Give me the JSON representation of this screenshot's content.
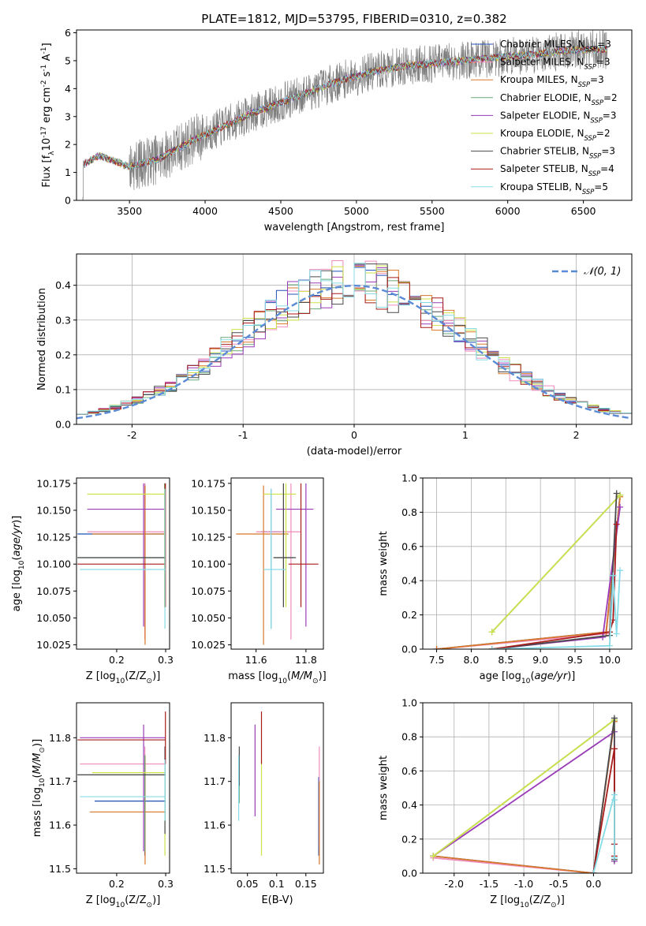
{
  "figure_title": "PLATE=1812, MJD=53795, FIBERID=0310, z=0.382",
  "models": [
    {
      "label": "Chabrier MILES, N$_{SSP}$=3",
      "base": "Chabrier MILES, N",
      "sub": "SSP",
      "suffix": "=3",
      "color": "#1f4fb4"
    },
    {
      "label": "Salpeter MILES, N$_{SSP}$=3",
      "base": "Salpeter MILES, N",
      "sub": "SSP",
      "suffix": "=3",
      "color": "#f08cbc"
    },
    {
      "label": "Kroupa MILES, N$_{SSP}$=3",
      "base": "Kroupa MILES, N",
      "sub": "SSP",
      "suffix": "=3",
      "color": "#d8782a"
    },
    {
      "label": "Chabrier ELODIE, N$_{SSP}$=2",
      "base": "Chabrier ELODIE, N",
      "sub": "SSP",
      "suffix": "=2",
      "color": "#6aa87a"
    },
    {
      "label": "Salpeter ELODIE, N$_{SSP}$=3",
      "base": "Salpeter ELODIE, N",
      "sub": "SSP",
      "suffix": "=3",
      "color": "#9a3cb8"
    },
    {
      "label": "Kroupa ELODIE, N$_{SSP}$=2",
      "base": "Kroupa ELODIE, N",
      "sub": "SSP",
      "suffix": "=2",
      "color": "#cde24a"
    },
    {
      "label": "Chabrier STELIB, N$_{SSP}$=3",
      "base": "Chabrier STELIB, N",
      "sub": "SSP",
      "suffix": "=3",
      "color": "#4a4a4a"
    },
    {
      "label": "Salpeter STELIB, N$_{SSP}$=4",
      "base": "Salpeter STELIB, N",
      "sub": "SSP",
      "suffix": "=4",
      "color": "#a81c1c"
    },
    {
      "label": "Kroupa STELIB, N$_{SSP}$=5",
      "base": "Kroupa STELIB, N",
      "sub": "SSP",
      "suffix": "=5",
      "color": "#86dce6"
    }
  ],
  "chart_data": [
    {
      "id": "spectrum",
      "type": "line",
      "xlabel": "wavelength [Angstrom, rest frame]",
      "ylabel": "Flux [f$_\\lambda$10$^{-17}$ erg cm$^{-2}$ s$^{-1}$ A$^{-1}$]",
      "xlim": [
        3150,
        6820
      ],
      "ylim": [
        0,
        6.1
      ],
      "xticks": [
        3500,
        4000,
        4500,
        5000,
        5500,
        6000,
        6500
      ],
      "yticks": [
        0,
        1,
        2,
        3,
        4,
        5,
        6
      ],
      "grid": false,
      "legend": "right",
      "observed": {
        "color": "#808080",
        "wavelength_range": [
          3190,
          6660
        ]
      },
      "model_continuum": {
        "x": [
          3200,
          3300,
          3500,
          3700,
          3900,
          4100,
          4300,
          4500,
          4700,
          4900,
          5100,
          5300,
          5500,
          5700,
          5900,
          6100,
          6300,
          6500,
          6660
        ],
        "y": [
          1.3,
          1.6,
          1.2,
          1.5,
          2.1,
          2.6,
          3.1,
          3.5,
          3.9,
          4.3,
          4.6,
          4.8,
          4.9,
          5.0,
          5.1,
          5.2,
          5.3,
          5.4,
          5.4
        ]
      }
    },
    {
      "id": "residuals",
      "type": "step",
      "xlabel": "(data-model)/error",
      "ylabel": "Normed distribution",
      "xlim": [
        -2.5,
        2.5
      ],
      "ylim": [
        0,
        0.49
      ],
      "xticks": [
        -2,
        -1,
        0,
        1,
        2
      ],
      "yticks": [
        0.0,
        0.1,
        0.2,
        0.3,
        0.4
      ],
      "grid": true,
      "legend": "top-right",
      "gaussian_label": "$\\mathcal{N}(0,1)$",
      "gaussian_text": "𝒩(0, 1)",
      "gaussian_color": "#5b8bd6",
      "bin_width": 0.1
    },
    {
      "id": "age_vs_Z",
      "type": "errorbar",
      "xlabel": "Z [log$_{10}$(Z/Z$_\\odot$)]",
      "ylabel": "age  [log$_{10}$($age/yr$)]",
      "xlim": [
        0.118,
        0.308
      ],
      "ylim": [
        10.021,
        10.18
      ],
      "xticks": [
        0.2,
        0.3
      ],
      "yticks": [
        10.025,
        10.05,
        10.075,
        10.1,
        10.125,
        10.15,
        10.175
      ],
      "points": [
        {
          "model": 0,
          "x": 0.2575,
          "y": 10.128,
          "xerr": [
            0.12,
            0.3
          ],
          "yerr": [
            10.04,
            10.175
          ]
        },
        {
          "model": 1,
          "x": 0.2575,
          "y": 10.13,
          "xerr": [
            0.14,
            0.3
          ],
          "yerr": [
            10.03,
            10.175
          ]
        },
        {
          "model": 2,
          "x": 0.258,
          "y": 10.128,
          "xerr": [
            0.15,
            0.3
          ],
          "yerr": [
            10.025,
            10.173
          ]
        },
        {
          "model": 3,
          "x": 0.298,
          "y": 10.106,
          "xerr": [
            0.12,
            0.3
          ],
          "yerr": [
            10.06,
            10.175
          ]
        },
        {
          "model": 4,
          "x": 0.255,
          "y": 10.151,
          "xerr": [
            0.14,
            0.3
          ],
          "yerr": [
            10.042,
            10.175
          ]
        },
        {
          "model": 5,
          "x": 0.298,
          "y": 10.165,
          "xerr": [
            0.14,
            0.3
          ],
          "yerr": [
            10.06,
            10.175
          ]
        },
        {
          "model": 6,
          "x": 0.2985,
          "y": 10.106,
          "xerr": [
            0.12,
            0.3
          ],
          "yerr": [
            10.06,
            10.175
          ]
        },
        {
          "model": 7,
          "x": 0.2995,
          "y": 10.1,
          "xerr": [
            0.12,
            0.3
          ],
          "yerr": [
            10.06,
            10.175
          ]
        },
        {
          "model": 8,
          "x": 0.2985,
          "y": 10.095,
          "xerr": [
            0.125,
            0.3
          ],
          "yerr": [
            10.04,
            10.17
          ]
        }
      ]
    },
    {
      "id": "age_vs_mass",
      "type": "errorbar",
      "xlabel": "mass [log$_{10}$($M/M_\\odot$)]",
      "ylabel": "",
      "xlim": [
        11.5,
        11.87
      ],
      "ylim": [
        10.021,
        10.18
      ],
      "xticks": [
        11.6,
        11.8
      ],
      "yticks": [
        10.025,
        10.05,
        10.075,
        10.1,
        10.125,
        10.15,
        10.175
      ],
      "points": [
        {
          "model": 0,
          "x": 11.66,
          "y": 10.13,
          "xerr": [
            11.62,
            11.7
          ],
          "yerr": [
            10.04,
            10.17
          ]
        },
        {
          "model": 1,
          "x": 11.74,
          "y": 10.13,
          "xerr": [
            11.6,
            11.78
          ],
          "yerr": [
            10.03,
            10.175
          ]
        },
        {
          "model": 2,
          "x": 11.63,
          "y": 10.128,
          "xerr": [
            11.52,
            11.73
          ],
          "yerr": [
            10.025,
            10.173
          ]
        },
        {
          "model": 3,
          "x": 11.71,
          "y": 10.106,
          "xerr": [
            11.67,
            11.75
          ],
          "yerr": [
            10.06,
            10.175
          ]
        },
        {
          "model": 4,
          "x": 11.8,
          "y": 10.151,
          "xerr": [
            11.68,
            11.83
          ],
          "yerr": [
            10.042,
            10.175
          ]
        },
        {
          "model": 5,
          "x": 11.72,
          "y": 10.165,
          "xerr": [
            11.63,
            11.76
          ],
          "yerr": [
            10.06,
            10.175
          ]
        },
        {
          "model": 6,
          "x": 11.71,
          "y": 10.106,
          "xerr": [
            11.67,
            11.76
          ],
          "yerr": [
            10.06,
            10.175
          ]
        },
        {
          "model": 7,
          "x": 11.78,
          "y": 10.1,
          "xerr": [
            11.73,
            11.85
          ],
          "yerr": [
            10.06,
            10.175
          ]
        },
        {
          "model": 8,
          "x": 11.66,
          "y": 10.095,
          "xerr": [
            11.63,
            11.72
          ],
          "yerr": [
            10.04,
            10.17
          ]
        }
      ]
    },
    {
      "id": "mass_vs_Z",
      "type": "errorbar",
      "xlabel": "Z [log$_{10}$(Z/Z$_\\odot$)]",
      "ylabel": "mass [log$_{10}$($M/M_\\odot$)]",
      "xlim": [
        0.118,
        0.308
      ],
      "ylim": [
        11.49,
        11.88
      ],
      "xticks": [
        0.2,
        0.3
      ],
      "yticks": [
        11.5,
        11.6,
        11.7,
        11.8
      ],
      "points": [
        {
          "model": 0,
          "x": 0.2575,
          "y": 11.655,
          "xerr": [
            0.155,
            0.3
          ],
          "yerr": [
            11.53,
            11.76
          ]
        },
        {
          "model": 1,
          "x": 0.2575,
          "y": 11.74,
          "xerr": [
            0.125,
            0.3
          ],
          "yerr": [
            11.54,
            11.78
          ]
        },
        {
          "model": 2,
          "x": 0.258,
          "y": 11.63,
          "xerr": [
            0.145,
            0.3
          ],
          "yerr": [
            11.51,
            11.76
          ]
        },
        {
          "model": 3,
          "x": 0.2575,
          "y": 11.715,
          "xerr": [
            0.12,
            0.3
          ],
          "yerr": [
            11.54,
            11.76
          ]
        },
        {
          "model": 4,
          "x": 0.255,
          "y": 11.8,
          "xerr": [
            0.125,
            0.3
          ],
          "yerr": [
            11.54,
            11.83
          ]
        },
        {
          "model": 5,
          "x": 0.2985,
          "y": 11.72,
          "xerr": [
            0.15,
            0.3
          ],
          "yerr": [
            11.53,
            11.76
          ]
        },
        {
          "model": 6,
          "x": 0.2985,
          "y": 11.715,
          "xerr": [
            0.12,
            0.3
          ],
          "yerr": [
            11.58,
            11.78
          ]
        },
        {
          "model": 7,
          "x": 0.2995,
          "y": 11.795,
          "xerr": [
            0.12,
            0.3
          ],
          "yerr": [
            11.74,
            11.86
          ]
        },
        {
          "model": 8,
          "x": 0.2985,
          "y": 11.665,
          "xerr": [
            0.125,
            0.3
          ],
          "yerr": [
            11.61,
            11.75
          ]
        }
      ]
    },
    {
      "id": "mass_vs_ebv",
      "type": "errorbar",
      "xlabel": "E(B-V)",
      "ylabel": "",
      "xlim": [
        0.022,
        0.18
      ],
      "ylim": [
        11.49,
        11.88
      ],
      "xticks": [
        0.05,
        0.1,
        0.15
      ],
      "yticks": [
        11.5,
        11.6,
        11.7,
        11.8
      ],
      "points": [
        {
          "model": 0,
          "x": 0.172,
          "y": 11.655,
          "yerr": [
            11.53,
            11.71
          ]
        },
        {
          "model": 1,
          "x": 0.173,
          "y": 11.74,
          "yerr": [
            11.55,
            11.78
          ]
        },
        {
          "model": 2,
          "x": 0.173,
          "y": 11.63,
          "yerr": [
            11.51,
            11.7
          ]
        },
        {
          "model": 3,
          "x": 0.036,
          "y": 11.715,
          "yerr": [
            11.65,
            11.76
          ]
        },
        {
          "model": 4,
          "x": 0.063,
          "y": 11.8,
          "yerr": [
            11.62,
            11.83
          ]
        },
        {
          "model": 5,
          "x": 0.074,
          "y": 11.72,
          "yerr": [
            11.53,
            11.75
          ]
        },
        {
          "model": 6,
          "x": 0.036,
          "y": 11.715,
          "yerr": [
            11.69,
            11.78
          ]
        },
        {
          "model": 7,
          "x": 0.074,
          "y": 11.795,
          "yerr": [
            11.74,
            11.86
          ]
        },
        {
          "model": 8,
          "x": 0.035,
          "y": 11.665,
          "yerr": [
            11.61,
            11.76
          ]
        }
      ]
    },
    {
      "id": "mass_weight_vs_age",
      "type": "line",
      "xlabel": "age  [log$_{10}$($age/yr$)]",
      "ylabel": "mass weight",
      "xlim": [
        7.3,
        10.32
      ],
      "ylim": [
        0,
        1.0
      ],
      "xticks": [
        7.5,
        8.0,
        8.5,
        9.0,
        9.5,
        10.0
      ],
      "yticks": [
        0.0,
        0.2,
        0.4,
        0.6,
        0.8,
        1.0
      ],
      "grid": true,
      "series": [
        {
          "model": 0,
          "x": [
            7.5,
            9.95,
            10.15
          ],
          "y": [
            0.0,
            0.1,
            0.9
          ]
        },
        {
          "model": 1,
          "x": [
            7.5,
            9.95,
            10.15
          ],
          "y": [
            0.0,
            0.09,
            0.89
          ]
        },
        {
          "model": 2,
          "x": [
            7.5,
            9.95,
            10.15
          ],
          "y": [
            0.0,
            0.1,
            0.89
          ]
        },
        {
          "model": 3,
          "x": [
            8.3,
            10.15
          ],
          "y": [
            0.1,
            0.9
          ]
        },
        {
          "model": 4,
          "x": [
            8.3,
            9.9,
            10.15
          ],
          "y": [
            0.0,
            0.07,
            0.83
          ]
        },
        {
          "model": 5,
          "x": [
            8.3,
            10.15
          ],
          "y": [
            0.1,
            0.9
          ]
        },
        {
          "model": 6,
          "x": [
            8.3,
            10.0,
            10.1
          ],
          "y": [
            0.0,
            0.08,
            0.91
          ]
        },
        {
          "model": 7,
          "x": [
            8.3,
            10.0,
            10.05,
            10.1
          ],
          "y": [
            0.0,
            0.1,
            0.17,
            0.73
          ]
        },
        {
          "model": 8,
          "x": [
            8.3,
            10.0,
            10.05,
            10.1,
            10.15
          ],
          "y": [
            0.0,
            0.02,
            0.43,
            0.09,
            0.46
          ]
        }
      ]
    },
    {
      "id": "mass_weight_vs_Z",
      "type": "line",
      "xlabel": "Z [log$_{10}$(Z/Z$_\\odot$)]",
      "ylabel": "mass weight",
      "xlim": [
        -2.45,
        0.55
      ],
      "ylim": [
        0,
        1.0
      ],
      "xticks": [
        -2.0,
        -1.5,
        -1.0,
        -0.5,
        0.0
      ],
      "yticks": [
        0.0,
        0.2,
        0.4,
        0.6,
        0.8,
        1.0
      ],
      "grid": true,
      "series": [
        {
          "model": 0,
          "x": [
            -2.3,
            0.0,
            0.3
          ],
          "y": [
            0.1,
            0.0,
            0.9
          ]
        },
        {
          "model": 1,
          "x": [
            -2.3,
            0.0,
            0.3
          ],
          "y": [
            0.09,
            0.0,
            0.89
          ]
        },
        {
          "model": 2,
          "x": [
            -2.3,
            0.0,
            0.3
          ],
          "y": [
            0.1,
            0.0,
            0.89
          ]
        },
        {
          "model": 3,
          "x": [
            -2.3,
            0.3
          ],
          "y": [
            0.1,
            0.9
          ]
        },
        {
          "model": 4,
          "x": [
            -2.3,
            0.3,
            0.3
          ],
          "y": [
            0.1,
            0.83,
            0.07
          ]
        },
        {
          "model": 5,
          "x": [
            -2.3,
            0.3
          ],
          "y": [
            0.1,
            0.9
          ]
        },
        {
          "model": 6,
          "x": [
            0.0,
            0.3,
            0.3
          ],
          "y": [
            0.0,
            0.91,
            0.08
          ]
        },
        {
          "model": 7,
          "x": [
            0.0,
            0.3,
            0.3,
            0.3
          ],
          "y": [
            0.0,
            0.73,
            0.17,
            0.1
          ]
        },
        {
          "model": 8,
          "x": [
            0.0,
            0.3,
            0.3,
            0.3
          ],
          "y": [
            0.0,
            0.46,
            0.09,
            0.43
          ]
        }
      ]
    }
  ]
}
